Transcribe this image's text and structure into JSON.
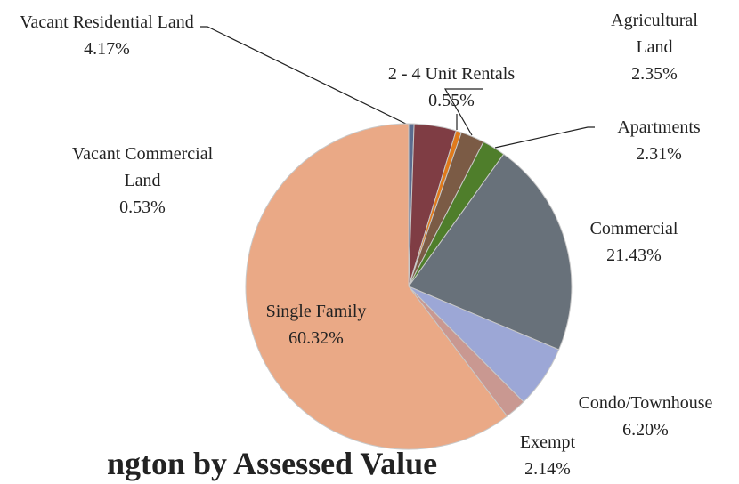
{
  "chart_data": {
    "type": "pie",
    "title": "ngton by Assessed Value",
    "categories": [
      "Vacant Commercial Land",
      "Vacant Residential Land",
      "2 - 4 Unit Rentals",
      "Agricultural Land",
      "Apartments",
      "Commercial",
      "Condo/Townhouse",
      "Exempt",
      "Single Family"
    ],
    "values": [
      0.53,
      4.17,
      0.55,
      2.35,
      2.31,
      21.43,
      6.2,
      2.14,
      60.32
    ],
    "value_labels": [
      "0.53%",
      "4.17%",
      "0.55%",
      "2.35%",
      "2.31%",
      "21.43%",
      "6.20%",
      "2.14%",
      "60.32%"
    ],
    "colors": [
      "#5b6c8f",
      "#7f3d44",
      "#e07a1c",
      "#7b5b45",
      "#4f7e2b",
      "#68717a",
      "#9ca7d6",
      "#c99891",
      "#eaa986"
    ]
  }
}
